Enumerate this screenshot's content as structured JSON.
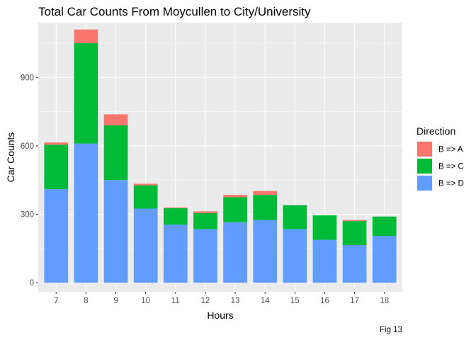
{
  "chart_data": {
    "type": "bar",
    "stacked": true,
    "title": "Total Car Counts From Moycullen to City/University",
    "xlabel": "Hours",
    "ylabel": "Car Counts",
    "caption": "Fig 13",
    "categories": [
      "7",
      "8",
      "9",
      "10",
      "11",
      "12",
      "13",
      "14",
      "15",
      "16",
      "17",
      "18"
    ],
    "ylim": [
      -40,
      1140
    ],
    "yticks": [
      0,
      300,
      600,
      900
    ],
    "ytick_labels": [
      "0",
      "300",
      "600",
      "900"
    ],
    "grid": true,
    "legend": {
      "title": "Direction",
      "position": "right"
    },
    "series": [
      {
        "name": "B => D",
        "color": "#619CFF",
        "values": [
          410,
          610,
          450,
          325,
          255,
          235,
          265,
          275,
          235,
          188,
          165,
          205
        ]
      },
      {
        "name": "B => C",
        "color": "#00BA38",
        "values": [
          195,
          440,
          240,
          102,
          72,
          70,
          110,
          110,
          105,
          107,
          105,
          85
        ]
      },
      {
        "name": "B => A",
        "color": "#F8766D",
        "values": [
          10,
          60,
          48,
          7,
          3,
          8,
          10,
          17,
          0,
          0,
          5,
          0
        ]
      }
    ]
  }
}
